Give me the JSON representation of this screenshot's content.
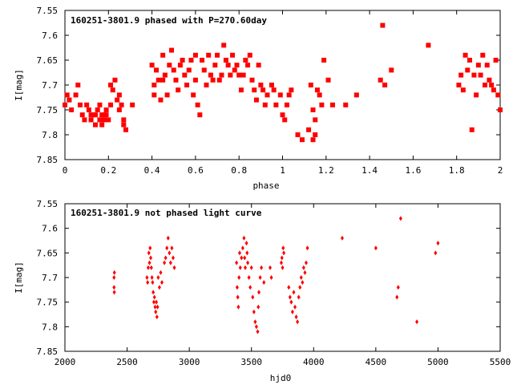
{
  "chart_data": [
    {
      "type": "scatter",
      "title": "160251-3801.9 phased with P=270.60day",
      "xlabel": "phase",
      "ylabel": "I[mag]",
      "xlim": [
        0,
        2
      ],
      "ylim": [
        7.85,
        7.55
      ],
      "y_inverted": true,
      "grid": false,
      "marker": "filled square cluster",
      "color": "#ff0000",
      "xticks": [
        "0",
        "0.2",
        "0.4",
        "0.6",
        "0.8",
        "1",
        "1.2",
        "1.4",
        "1.6",
        "1.8",
        "2"
      ],
      "yticks": [
        "7.55",
        "7.6",
        "7.65",
        "7.7",
        "7.75",
        "7.8",
        "7.85"
      ],
      "points": [
        [
          0.0,
          7.74
        ],
        [
          0.01,
          7.72
        ],
        [
          0.02,
          7.73
        ],
        [
          0.03,
          7.75
        ],
        [
          0.05,
          7.72
        ],
        [
          0.06,
          7.7
        ],
        [
          0.07,
          7.74
        ],
        [
          0.08,
          7.76
        ],
        [
          0.09,
          7.77
        ],
        [
          0.1,
          7.74
        ],
        [
          0.11,
          7.75
        ],
        [
          0.12,
          7.77
        ],
        [
          0.12,
          7.76
        ],
        [
          0.13,
          7.76
        ],
        [
          0.14,
          7.78
        ],
        [
          0.14,
          7.76
        ],
        [
          0.15,
          7.75
        ],
        [
          0.16,
          7.77
        ],
        [
          0.16,
          7.74
        ],
        [
          0.17,
          7.78
        ],
        [
          0.17,
          7.76
        ],
        [
          0.18,
          7.76
        ],
        [
          0.18,
          7.77
        ],
        [
          0.19,
          7.75
        ],
        [
          0.19,
          7.76
        ],
        [
          0.2,
          7.77
        ],
        [
          0.21,
          7.7
        ],
        [
          0.21,
          7.74
        ],
        [
          0.22,
          7.71
        ],
        [
          0.23,
          7.69
        ],
        [
          0.24,
          7.73
        ],
        [
          0.25,
          7.72
        ],
        [
          0.25,
          7.75
        ],
        [
          0.26,
          7.74
        ],
        [
          0.27,
          7.78
        ],
        [
          0.27,
          7.77
        ],
        [
          0.28,
          7.79
        ],
        [
          0.31,
          7.74
        ],
        [
          0.4,
          7.66
        ],
        [
          0.41,
          7.7
        ],
        [
          0.41,
          7.72
        ],
        [
          0.42,
          7.67
        ],
        [
          0.43,
          7.69
        ],
        [
          0.44,
          7.73
        ],
        [
          0.45,
          7.64
        ],
        [
          0.45,
          7.69
        ],
        [
          0.46,
          7.68
        ],
        [
          0.47,
          7.72
        ],
        [
          0.48,
          7.66
        ],
        [
          0.49,
          7.63
        ],
        [
          0.5,
          7.67
        ],
        [
          0.51,
          7.69
        ],
        [
          0.52,
          7.71
        ],
        [
          0.53,
          7.66
        ],
        [
          0.54,
          7.65
        ],
        [
          0.55,
          7.68
        ],
        [
          0.56,
          7.7
        ],
        [
          0.57,
          7.67
        ],
        [
          0.58,
          7.65
        ],
        [
          0.59,
          7.72
        ],
        [
          0.6,
          7.64
        ],
        [
          0.6,
          7.69
        ],
        [
          0.61,
          7.74
        ],
        [
          0.62,
          7.76
        ],
        [
          0.63,
          7.65
        ],
        [
          0.64,
          7.67
        ],
        [
          0.65,
          7.7
        ],
        [
          0.66,
          7.64
        ],
        [
          0.67,
          7.68
        ],
        [
          0.68,
          7.69
        ],
        [
          0.69,
          7.66
        ],
        [
          0.7,
          7.64
        ],
        [
          0.71,
          7.69
        ],
        [
          0.72,
          7.68
        ],
        [
          0.73,
          7.62
        ],
        [
          0.74,
          7.65
        ],
        [
          0.75,
          7.66
        ],
        [
          0.76,
          7.68
        ],
        [
          0.77,
          7.64
        ],
        [
          0.78,
          7.67
        ],
        [
          0.79,
          7.66
        ],
        [
          0.8,
          7.68
        ],
        [
          0.81,
          7.71
        ],
        [
          0.82,
          7.68
        ],
        [
          0.83,
          7.65
        ],
        [
          0.84,
          7.66
        ],
        [
          0.85,
          7.64
        ],
        [
          0.86,
          7.69
        ],
        [
          0.87,
          7.71
        ],
        [
          0.88,
          7.73
        ],
        [
          0.89,
          7.66
        ],
        [
          0.9,
          7.7
        ],
        [
          0.91,
          7.71
        ],
        [
          0.92,
          7.74
        ],
        [
          0.93,
          7.72
        ],
        [
          0.95,
          7.7
        ],
        [
          0.96,
          7.71
        ],
        [
          0.97,
          7.74
        ],
        [
          0.99,
          7.72
        ],
        [
          1.0,
          7.76
        ],
        [
          1.01,
          7.77
        ],
        [
          1.02,
          7.74
        ],
        [
          1.03,
          7.72
        ],
        [
          1.04,
          7.71
        ],
        [
          1.07,
          7.8
        ],
        [
          1.09,
          7.81
        ],
        [
          1.12,
          7.79
        ],
        [
          1.13,
          7.7
        ],
        [
          1.14,
          7.75
        ],
        [
          1.14,
          7.81
        ],
        [
          1.15,
          7.8
        ],
        [
          1.15,
          7.77
        ],
        [
          1.16,
          7.71
        ],
        [
          1.17,
          7.72
        ],
        [
          1.18,
          7.74
        ],
        [
          1.19,
          7.65
        ],
        [
          1.21,
          7.69
        ],
        [
          1.23,
          7.74
        ],
        [
          1.29,
          7.74
        ],
        [
          1.34,
          7.72
        ],
        [
          1.46,
          7.58
        ],
        [
          1.45,
          7.69
        ],
        [
          1.47,
          7.7
        ],
        [
          1.5,
          7.67
        ],
        [
          1.67,
          7.62
        ],
        [
          1.81,
          7.7
        ],
        [
          1.82,
          7.68
        ],
        [
          1.83,
          7.71
        ],
        [
          1.84,
          7.64
        ],
        [
          1.85,
          7.67
        ],
        [
          1.86,
          7.65
        ],
        [
          1.87,
          7.79
        ],
        [
          1.88,
          7.68
        ],
        [
          1.89,
          7.72
        ],
        [
          1.9,
          7.66
        ],
        [
          1.91,
          7.68
        ],
        [
          1.92,
          7.64
        ],
        [
          1.93,
          7.7
        ],
        [
          1.94,
          7.66
        ],
        [
          1.95,
          7.69
        ],
        [
          1.96,
          7.7
        ],
        [
          1.97,
          7.71
        ],
        [
          1.98,
          7.65
        ],
        [
          1.99,
          7.72
        ],
        [
          2.0,
          7.75
        ]
      ]
    },
    {
      "type": "scatter",
      "title": "160251-3801.9 not phased light curve",
      "xlabel": "hjd0",
      "ylabel": "I[mag]",
      "xlim": [
        2000,
        5500
      ],
      "ylim": [
        7.85,
        7.55
      ],
      "y_inverted": true,
      "grid": false,
      "marker": "small filled diamond",
      "color": "#ff0000",
      "xticks": [
        "2000",
        "2500",
        "3000",
        "3500",
        "4000",
        "4500",
        "5000",
        "5500"
      ],
      "yticks": [
        "7.55",
        "7.6",
        "7.65",
        "7.7",
        "7.75",
        "7.8",
        "7.85"
      ],
      "points": [
        [
          2395,
          7.7
        ],
        [
          2395,
          7.72
        ],
        [
          2397,
          7.73
        ],
        [
          2398,
          7.69
        ],
        [
          2660,
          7.7
        ],
        [
          2665,
          7.71
        ],
        [
          2670,
          7.68
        ],
        [
          2675,
          7.65
        ],
        [
          2680,
          7.67
        ],
        [
          2685,
          7.64
        ],
        [
          2690,
          7.66
        ],
        [
          2695,
          7.68
        ],
        [
          2700,
          7.7
        ],
        [
          2705,
          7.71
        ],
        [
          2710,
          7.73
        ],
        [
          2715,
          7.75
        ],
        [
          2720,
          7.74
        ],
        [
          2725,
          7.76
        ],
        [
          2730,
          7.77
        ],
        [
          2735,
          7.75
        ],
        [
          2740,
          7.78
        ],
        [
          2745,
          7.76
        ],
        [
          2750,
          7.7
        ],
        [
          2760,
          7.72
        ],
        [
          2770,
          7.69
        ],
        [
          2780,
          7.71
        ],
        [
          2800,
          7.67
        ],
        [
          2810,
          7.66
        ],
        [
          2820,
          7.64
        ],
        [
          2830,
          7.62
        ],
        [
          2840,
          7.65
        ],
        [
          2850,
          7.67
        ],
        [
          2860,
          7.64
        ],
        [
          2870,
          7.66
        ],
        [
          2880,
          7.68
        ],
        [
          3380,
          7.67
        ],
        [
          3385,
          7.72
        ],
        [
          3390,
          7.74
        ],
        [
          3395,
          7.76
        ],
        [
          3400,
          7.7
        ],
        [
          3405,
          7.65
        ],
        [
          3410,
          7.68
        ],
        [
          3420,
          7.66
        ],
        [
          3430,
          7.64
        ],
        [
          3440,
          7.62
        ],
        [
          3445,
          7.66
        ],
        [
          3450,
          7.68
        ],
        [
          3460,
          7.63
        ],
        [
          3465,
          7.65
        ],
        [
          3470,
          7.67
        ],
        [
          3480,
          7.7
        ],
        [
          3490,
          7.72
        ],
        [
          3500,
          7.68
        ],
        [
          3510,
          7.74
        ],
        [
          3520,
          7.77
        ],
        [
          3530,
          7.79
        ],
        [
          3540,
          7.8
        ],
        [
          3550,
          7.81
        ],
        [
          3555,
          7.76
        ],
        [
          3560,
          7.73
        ],
        [
          3570,
          7.7
        ],
        [
          3580,
          7.68
        ],
        [
          3600,
          7.71
        ],
        [
          3650,
          7.68
        ],
        [
          3660,
          7.7
        ],
        [
          3740,
          7.67
        ],
        [
          3745,
          7.66
        ],
        [
          3750,
          7.68
        ],
        [
          3755,
          7.64
        ],
        [
          3760,
          7.65
        ],
        [
          3800,
          7.72
        ],
        [
          3810,
          7.74
        ],
        [
          3820,
          7.75
        ],
        [
          3830,
          7.77
        ],
        [
          3840,
          7.73
        ],
        [
          3850,
          7.76
        ],
        [
          3860,
          7.78
        ],
        [
          3870,
          7.79
        ],
        [
          3880,
          7.74
        ],
        [
          3890,
          7.72
        ],
        [
          3900,
          7.7
        ],
        [
          3910,
          7.71
        ],
        [
          3920,
          7.68
        ],
        [
          3930,
          7.69
        ],
        [
          3940,
          7.67
        ],
        [
          3950,
          7.64
        ],
        [
          4230,
          7.62
        ],
        [
          4500,
          7.64
        ],
        [
          4670,
          7.74
        ],
        [
          4680,
          7.72
        ],
        [
          4700,
          7.58
        ],
        [
          4830,
          7.79
        ],
        [
          4980,
          7.65
        ],
        [
          5000,
          7.63
        ]
      ]
    }
  ]
}
